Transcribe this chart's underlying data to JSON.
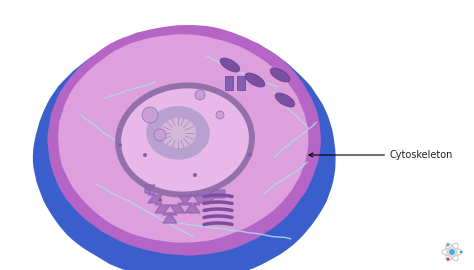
{
  "bg_color": "#ffffff",
  "outer_cell_color": "#3a5fcd",
  "cell_membrane_outer_color": "#b565c5",
  "cell_interior_color": "#dda0dd",
  "cell_membrane_inner_color": "#b565c5",
  "nuclear_envelope_color": "#9370ab",
  "nucleus_interior_color": "#e8b8e8",
  "nucleolus_color": "#b8a0d0",
  "cytoskeleton_line_color": "#add8e6",
  "annotation_text": "Cytoskeleton",
  "annotation_color": "#222222",
  "sciencing_atom_color": "#aaaaaa"
}
